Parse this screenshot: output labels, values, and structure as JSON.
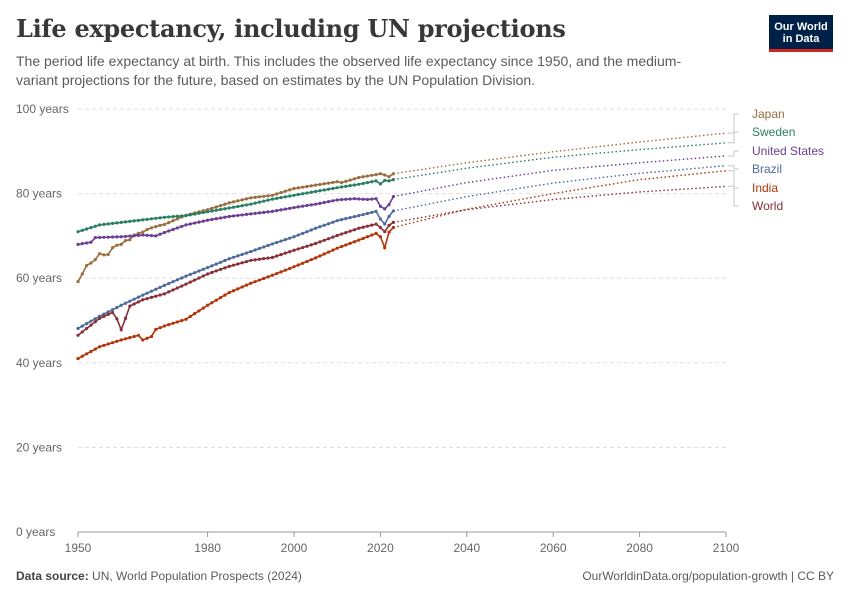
{
  "header": {
    "title": "Life expectancy, including UN projections",
    "subtitle": "The period life expectancy at birth. This includes the observed life expectancy since 1950, and the medium-variant projections for the future, based on estimates by the UN Population Division.",
    "logo_line1": "Our World",
    "logo_line2": "in Data"
  },
  "footer": {
    "source_label": "Data source:",
    "source_text": "UN, World Population Prospects (2024)",
    "url_text": "OurWorldinData.org/population-growth | CC BY"
  },
  "chart_data": {
    "type": "line",
    "title": "Life expectancy, including UN projections",
    "xlim": [
      1950,
      2100
    ],
    "ylim": [
      0,
      100
    ],
    "x_ticks": [
      1950,
      1980,
      2000,
      2020,
      2040,
      2060,
      2080,
      2100
    ],
    "y_ticks": [
      0,
      20,
      40,
      60,
      80,
      100
    ],
    "y_tick_labels": [
      "0 years",
      "20 years",
      "40 years",
      "60 years",
      "80 years",
      "100 years"
    ],
    "grid": "horizontal dashed",
    "legend": "right, line-end labels",
    "observed_until": 2023,
    "series": [
      {
        "name": "Japan",
        "color": "#9a6f3f",
        "observed": [
          [
            1950,
            59.2
          ],
          [
            1951,
            61.0
          ],
          [
            1952,
            63.0
          ],
          [
            1953,
            63.6
          ],
          [
            1954,
            64.4
          ],
          [
            1955,
            65.8
          ],
          [
            1956,
            65.5
          ],
          [
            1957,
            65.6
          ],
          [
            1958,
            67.2
          ],
          [
            1959,
            67.8
          ],
          [
            1960,
            68.0
          ],
          [
            1961,
            68.9
          ],
          [
            1962,
            69.1
          ],
          [
            1963,
            70.2
          ],
          [
            1964,
            70.6
          ],
          [
            1965,
            70.9
          ],
          [
            1966,
            71.5
          ],
          [
            1967,
            71.9
          ],
          [
            1968,
            72.2
          ],
          [
            1969,
            72.5
          ],
          [
            1970,
            72.7
          ],
          [
            1975,
            74.9
          ],
          [
            1980,
            76.2
          ],
          [
            1985,
            77.8
          ],
          [
            1990,
            79.0
          ],
          [
            1995,
            79.6
          ],
          [
            2000,
            81.2
          ],
          [
            2005,
            82.0
          ],
          [
            2010,
            82.8
          ],
          [
            2011,
            82.6
          ],
          [
            2015,
            83.8
          ],
          [
            2019,
            84.5
          ],
          [
            2020,
            84.7
          ],
          [
            2021,
            84.4
          ],
          [
            2022,
            84.0
          ],
          [
            2023,
            84.7
          ]
        ],
        "projected": [
          [
            2023,
            84.7
          ],
          [
            2040,
            87.3
          ],
          [
            2060,
            89.9
          ],
          [
            2080,
            92.2
          ],
          [
            2100,
            94.3
          ]
        ]
      },
      {
        "name": "Sweden",
        "color": "#2a7e63",
        "observed": [
          [
            1950,
            71.0
          ],
          [
            1955,
            72.6
          ],
          [
            1960,
            73.2
          ],
          [
            1965,
            73.8
          ],
          [
            1970,
            74.4
          ],
          [
            1975,
            74.8
          ],
          [
            1980,
            75.7
          ],
          [
            1985,
            76.6
          ],
          [
            1990,
            77.5
          ],
          [
            1995,
            78.7
          ],
          [
            2000,
            79.6
          ],
          [
            2005,
            80.5
          ],
          [
            2010,
            81.4
          ],
          [
            2015,
            82.2
          ],
          [
            2019,
            83.0
          ],
          [
            2020,
            82.3
          ],
          [
            2021,
            83.1
          ],
          [
            2022,
            83.0
          ],
          [
            2023,
            83.3
          ]
        ],
        "projected": [
          [
            2023,
            83.3
          ],
          [
            2040,
            86.0
          ],
          [
            2060,
            88.6
          ],
          [
            2080,
            90.4
          ],
          [
            2100,
            92.0
          ]
        ]
      },
      {
        "name": "United States",
        "color": "#6d3e91",
        "observed": [
          [
            1950,
            68.0
          ],
          [
            1953,
            68.5
          ],
          [
            1954,
            69.6
          ],
          [
            1960,
            69.8
          ],
          [
            1965,
            70.2
          ],
          [
            1968,
            70.0
          ],
          [
            1970,
            70.8
          ],
          [
            1975,
            72.6
          ],
          [
            1980,
            73.7
          ],
          [
            1985,
            74.6
          ],
          [
            1990,
            75.2
          ],
          [
            1995,
            75.8
          ],
          [
            2000,
            76.7
          ],
          [
            2005,
            77.5
          ],
          [
            2010,
            78.5
          ],
          [
            2014,
            78.8
          ],
          [
            2017,
            78.6
          ],
          [
            2019,
            78.8
          ],
          [
            2020,
            77.0
          ],
          [
            2021,
            76.4
          ],
          [
            2022,
            77.4
          ],
          [
            2023,
            79.3
          ]
        ],
        "projected": [
          [
            2023,
            79.3
          ],
          [
            2040,
            82.6
          ],
          [
            2060,
            85.5
          ],
          [
            2080,
            87.3
          ],
          [
            2100,
            88.9
          ]
        ]
      },
      {
        "name": "Brazil",
        "color": "#4c6a9c",
        "observed": [
          [
            1950,
            48.1
          ],
          [
            1955,
            51.0
          ],
          [
            1960,
            53.6
          ],
          [
            1965,
            56.0
          ],
          [
            1970,
            58.3
          ],
          [
            1975,
            60.5
          ],
          [
            1980,
            62.5
          ],
          [
            1985,
            64.6
          ],
          [
            1990,
            66.3
          ],
          [
            1995,
            68.1
          ],
          [
            2000,
            69.8
          ],
          [
            2005,
            71.8
          ],
          [
            2010,
            73.6
          ],
          [
            2015,
            74.8
          ],
          [
            2019,
            75.8
          ],
          [
            2020,
            74.0
          ],
          [
            2021,
            72.8
          ],
          [
            2022,
            74.6
          ],
          [
            2023,
            75.9
          ]
        ],
        "projected": [
          [
            2023,
            75.9
          ],
          [
            2040,
            79.3
          ],
          [
            2060,
            82.5
          ],
          [
            2080,
            84.8
          ],
          [
            2100,
            86.6
          ]
        ]
      },
      {
        "name": "India",
        "color": "#b13507",
        "observed": [
          [
            1950,
            41.0
          ],
          [
            1955,
            43.8
          ],
          [
            1960,
            45.4
          ],
          [
            1964,
            46.5
          ],
          [
            1965,
            45.4
          ],
          [
            1967,
            46.2
          ],
          [
            1968,
            47.9
          ],
          [
            1970,
            48.7
          ],
          [
            1975,
            50.3
          ],
          [
            1980,
            53.6
          ],
          [
            1985,
            56.6
          ],
          [
            1990,
            58.8
          ],
          [
            1995,
            60.7
          ],
          [
            2000,
            62.7
          ],
          [
            2005,
            64.8
          ],
          [
            2010,
            67.1
          ],
          [
            2015,
            69.0
          ],
          [
            2019,
            70.6
          ],
          [
            2020,
            69.8
          ],
          [
            2021,
            67.2
          ],
          [
            2022,
            70.9
          ],
          [
            2023,
            72.0
          ]
        ],
        "projected": [
          [
            2023,
            72.0
          ],
          [
            2040,
            76.3
          ],
          [
            2060,
            80.0
          ],
          [
            2080,
            83.3
          ],
          [
            2100,
            85.4
          ]
        ]
      },
      {
        "name": "World",
        "color": "#883039",
        "observed": [
          [
            1950,
            46.5
          ],
          [
            1955,
            50.5
          ],
          [
            1958,
            51.9
          ],
          [
            1959,
            50.4
          ],
          [
            1960,
            47.8
          ],
          [
            1961,
            50.5
          ],
          [
            1962,
            53.4
          ],
          [
            1965,
            54.9
          ],
          [
            1970,
            56.3
          ],
          [
            1975,
            58.6
          ],
          [
            1980,
            61.0
          ],
          [
            1985,
            62.8
          ],
          [
            1990,
            64.2
          ],
          [
            1995,
            64.9
          ],
          [
            2000,
            66.6
          ],
          [
            2005,
            68.2
          ],
          [
            2010,
            70.1
          ],
          [
            2015,
            71.8
          ],
          [
            2019,
            72.8
          ],
          [
            2020,
            72.0
          ],
          [
            2021,
            71.0
          ],
          [
            2022,
            72.5
          ],
          [
            2023,
            73.2
          ]
        ],
        "projected": [
          [
            2023,
            73.2
          ],
          [
            2040,
            76.2
          ],
          [
            2060,
            78.6
          ],
          [
            2080,
            80.4
          ],
          [
            2100,
            81.7
          ]
        ]
      }
    ]
  }
}
